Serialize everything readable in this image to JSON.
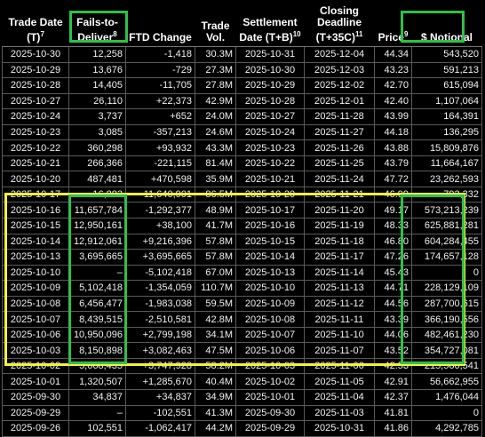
{
  "headers": {
    "trade_date": {
      "text": "Trade Date (T)",
      "note": "7"
    },
    "ftd": {
      "text": "Fails-to-Deliver",
      "note": "8"
    },
    "ftd_change": {
      "text": "FTD Change",
      "note": ""
    },
    "trade_vol": {
      "text": "Trade Vol.",
      "note": ""
    },
    "settlement": {
      "text": "Settlement Date (T+B)",
      "note": "10"
    },
    "closing": {
      "text": "Closing Deadline (T+35C)",
      "note": "11"
    },
    "price": {
      "text": "Price",
      "note": "9"
    },
    "notional": {
      "text": "$ Notional",
      "note": ""
    }
  },
  "rows": [
    [
      "2025-10-30",
      "12,258",
      "-1,418",
      "30.3M",
      "2025-10-31",
      "2025-12-04",
      "44.34",
      "543,520"
    ],
    [
      "2025-10-29",
      "13,676",
      "-729",
      "27.3M",
      "2025-10-30",
      "2025-12-03",
      "43.23",
      "591,213"
    ],
    [
      "2025-10-28",
      "14,405",
      "-11,705",
      "27.8M",
      "2025-10-29",
      "2025-12-02",
      "42.70",
      "615,094"
    ],
    [
      "2025-10-27",
      "26,110",
      "+22,373",
      "42.9M",
      "2025-10-28",
      "2025-12-01",
      "42.40",
      "1,107,064"
    ],
    [
      "2025-10-24",
      "3,737",
      "+652",
      "24.0M",
      "2025-10-27",
      "2025-11-28",
      "43.99",
      "164,391"
    ],
    [
      "2025-10-23",
      "3,085",
      "-357,213",
      "24.6M",
      "2025-10-24",
      "2025-11-27",
      "44.18",
      "136,295"
    ],
    [
      "2025-10-22",
      "360,298",
      "+93,932",
      "43.3M",
      "2025-10-23",
      "2025-11-26",
      "43.88",
      "15,809,876"
    ],
    [
      "2025-10-21",
      "266,366",
      "-221,115",
      "81.4M",
      "2025-10-22",
      "2025-11-25",
      "43.79",
      "11,664,167"
    ],
    [
      "2025-10-20",
      "487,481",
      "+470,598",
      "35.9M",
      "2025-10-21",
      "2025-11-24",
      "47.72",
      "23,262,593"
    ],
    [
      "2025-10-17",
      "16,883",
      "-11,640,901",
      "86.5M",
      "2025-10-20",
      "2025-11-21",
      "46.99",
      "793,332"
    ],
    [
      "2025-10-16",
      "11,657,784",
      "-1,292,377",
      "48.9M",
      "2025-10-17",
      "2025-11-20",
      "49.17",
      "573,213,239"
    ],
    [
      "2025-10-15",
      "12,950,161",
      "+38,100",
      "41.7M",
      "2025-10-16",
      "2025-11-19",
      "48.33",
      "625,881,281"
    ],
    [
      "2025-10-14",
      "12,912,061",
      "+9,216,396",
      "57.8M",
      "2025-10-15",
      "2025-11-18",
      "46.80",
      "604,284,455"
    ],
    [
      "2025-10-13",
      "3,695,665",
      "+3,695,665",
      "57.8M",
      "2025-10-14",
      "2025-11-17",
      "47.26",
      "174,657,128"
    ],
    [
      "2025-10-10",
      "–",
      "-5,102,418",
      "67.0M",
      "2025-10-13",
      "2025-11-14",
      "45.43",
      "0"
    ],
    [
      "2025-10-09",
      "5,102,418",
      "-1,354,059",
      "110.7M",
      "2025-10-10",
      "2025-11-13",
      "44.71",
      "228,129,109"
    ],
    [
      "2025-10-08",
      "6,456,477",
      "-1,983,038",
      "59.5M",
      "2025-10-09",
      "2025-11-12",
      "44.56",
      "287,700,615"
    ],
    [
      "2025-10-07",
      "8,439,515",
      "-2,510,581",
      "42.8M",
      "2025-10-08",
      "2025-11-11",
      "43.39",
      "366,190,556"
    ],
    [
      "2025-10-06",
      "10,950,096",
      "+2,799,198",
      "34.1M",
      "2025-10-07",
      "2025-11-10",
      "44.06",
      "482,461,230"
    ],
    [
      "2025-10-03",
      "8,150,898",
      "+3,082,463",
      "47.5M",
      "2025-10-06",
      "2025-11-07",
      "43.52",
      "354,727,081"
    ],
    [
      "2025-10-02",
      "5,068,435",
      "+3,747,928",
      "58.2M",
      "2025-10-03",
      "2025-11-06",
      "42.53",
      "215,560,541"
    ],
    [
      "2025-10-01",
      "1,320,507",
      "+1,285,670",
      "40.4M",
      "2025-10-02",
      "2025-11-05",
      "42.91",
      "56,662,955"
    ],
    [
      "2025-09-30",
      "34,837",
      "+34,837",
      "34.9M",
      "2025-10-01",
      "2025-11-04",
      "42.37",
      "1,476,044"
    ],
    [
      "2025-09-29",
      "–",
      "-102,551",
      "41.3M",
      "2025-09-30",
      "2025-11-03",
      "41.81",
      "0"
    ],
    [
      "2025-09-26",
      "102,551",
      "-1,062,417",
      "44.2M",
      "2025-09-29",
      "2025-10-31",
      "41.86",
      "4,292,785"
    ]
  ],
  "highlight_colors": {
    "column": "#2fc04a",
    "range": "#f2f23c"
  }
}
